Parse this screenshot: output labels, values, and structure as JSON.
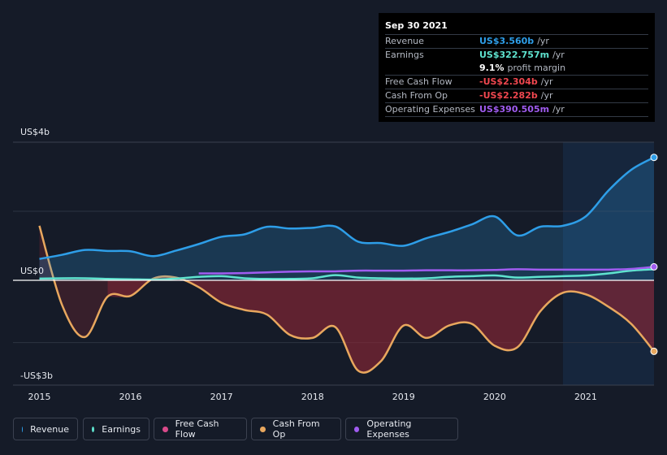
{
  "tooltip": {
    "date": "Sep 30 2021",
    "rows": [
      {
        "label": "Revenue",
        "value": "US$3.560b",
        "unit": "/yr",
        "color": "#2e9ee8"
      },
      {
        "label": "Earnings",
        "value": "US$322.757m",
        "unit": "/yr",
        "color": "#5fe3cf"
      },
      {
        "label": "",
        "value": "9.1%",
        "unit": "profit margin",
        "color": "#ffffff"
      },
      {
        "label": "Free Cash Flow",
        "value": "-US$2.304b",
        "unit": "/yr",
        "color": "#f0474f"
      },
      {
        "label": "Cash From Op",
        "value": "-US$2.282b",
        "unit": "/yr",
        "color": "#f0474f"
      },
      {
        "label": "Operating Expenses",
        "value": "US$390.505m",
        "unit": "/yr",
        "color": "#a05cf0"
      }
    ]
  },
  "legend": [
    {
      "label": "Revenue",
      "color": "#2e9ee8"
    },
    {
      "label": "Earnings",
      "color": "#5fe3cf"
    },
    {
      "label": "Free Cash Flow",
      "color": "#d94a8a"
    },
    {
      "label": "Cash From Op",
      "color": "#e8a75e"
    },
    {
      "label": "Operating Expenses",
      "color": "#a05cf0"
    }
  ],
  "chart_data": {
    "type": "line",
    "y_tick_labels": [
      "US$4b",
      "US$0",
      "-US$3b"
    ],
    "ylim": [
      -3,
      4
    ],
    "x_tick_labels": [
      "2015",
      "2016",
      "2017",
      "2018",
      "2019",
      "2020",
      "2021"
    ],
    "xlim": [
      2014.71,
      2021.75
    ],
    "highlight_start": 2020.75,
    "series": [
      {
        "name": "Revenue",
        "color": "#2e9ee8",
        "fill": true,
        "x": [
          2015.0,
          2015.25,
          2015.5,
          2015.75,
          2016.0,
          2016.25,
          2016.5,
          2016.75,
          2017.0,
          2017.25,
          2017.5,
          2017.75,
          2018.0,
          2018.25,
          2018.5,
          2018.75,
          2019.0,
          2019.25,
          2019.5,
          2019.75,
          2020.0,
          2020.25,
          2020.5,
          2020.75,
          2021.0,
          2021.25,
          2021.5,
          2021.75
        ],
        "y": [
          0.62,
          0.74,
          0.88,
          0.85,
          0.84,
          0.7,
          0.86,
          1.05,
          1.26,
          1.33,
          1.55,
          1.5,
          1.52,
          1.56,
          1.12,
          1.08,
          1.0,
          1.22,
          1.4,
          1.62,
          1.85,
          1.3,
          1.55,
          1.58,
          1.85,
          2.6,
          3.2,
          3.56
        ]
      },
      {
        "name": "Earnings",
        "color": "#5fe3cf",
        "fill": false,
        "x": [
          2015.0,
          2015.25,
          2015.5,
          2015.75,
          2016.0,
          2016.25,
          2016.5,
          2016.75,
          2017.0,
          2017.25,
          2017.5,
          2017.75,
          2018.0,
          2018.25,
          2018.5,
          2018.75,
          2019.0,
          2019.25,
          2019.5,
          2019.75,
          2020.0,
          2020.25,
          2020.5,
          2020.75,
          2021.0,
          2021.25,
          2021.5,
          2021.75
        ],
        "y": [
          0.05,
          0.06,
          0.06,
          0.04,
          0.03,
          0.02,
          0.05,
          0.1,
          0.12,
          0.06,
          0.04,
          0.04,
          0.06,
          0.15,
          0.08,
          0.06,
          0.05,
          0.06,
          0.1,
          0.12,
          0.14,
          0.08,
          0.1,
          0.12,
          0.14,
          0.2,
          0.28,
          0.32
        ]
      },
      {
        "name": "Operating Expenses",
        "color": "#a05cf0",
        "fill": false,
        "x": [
          2016.75,
          2017.0,
          2017.25,
          2017.5,
          2017.75,
          2018.0,
          2018.25,
          2018.5,
          2018.75,
          2019.0,
          2019.25,
          2019.5,
          2019.75,
          2020.0,
          2020.25,
          2020.5,
          2020.75,
          2021.0,
          2021.25,
          2021.5,
          2021.75
        ],
        "y": [
          0.2,
          0.2,
          0.21,
          0.23,
          0.25,
          0.26,
          0.26,
          0.28,
          0.28,
          0.28,
          0.29,
          0.29,
          0.29,
          0.3,
          0.32,
          0.31,
          0.31,
          0.31,
          0.31,
          0.33,
          0.39
        ]
      },
      {
        "name": "Free Cash Flow",
        "color": "#d94a8a",
        "fill": true,
        "line": false,
        "x": [
          2015.75,
          2016.0,
          2016.25,
          2016.5,
          2016.75,
          2017.0,
          2017.25,
          2017.5,
          2017.75,
          2018.0,
          2018.25,
          2018.5,
          2018.75,
          2019.0,
          2019.25,
          2019.5,
          2019.75,
          2020.0,
          2020.25,
          2020.5,
          2020.75,
          2021.0,
          2021.25,
          2021.5,
          2021.75
        ],
        "y": [
          -0.52,
          -0.5,
          0.05,
          0.08,
          -0.22,
          -0.72,
          -0.95,
          -1.1,
          -1.75,
          -1.85,
          -1.5,
          -2.9,
          -2.6,
          -1.45,
          -1.85,
          -1.45,
          -1.4,
          -2.1,
          -2.15,
          -1.0,
          -0.4,
          -0.45,
          -0.85,
          -1.4,
          -2.3
        ]
      },
      {
        "name": "Cash From Op",
        "color": "#e8a75e",
        "fill": true,
        "x": [
          2015.0,
          2015.25,
          2015.5,
          2015.75,
          2016.0,
          2016.25,
          2016.5,
          2016.75,
          2017.0,
          2017.25,
          2017.5,
          2017.75,
          2018.0,
          2018.25,
          2018.5,
          2018.75,
          2019.0,
          2019.25,
          2019.5,
          2019.75,
          2020.0,
          2020.25,
          2020.5,
          2020.75,
          2021.0,
          2021.25,
          2021.5,
          2021.75
        ],
        "y": [
          1.58,
          -0.8,
          -1.82,
          -0.52,
          -0.5,
          0.05,
          0.08,
          -0.22,
          -0.72,
          -0.95,
          -1.1,
          -1.75,
          -1.85,
          -1.5,
          -2.9,
          -2.6,
          -1.45,
          -1.85,
          -1.45,
          -1.4,
          -2.1,
          -2.15,
          -1.0,
          -0.4,
          -0.45,
          -0.85,
          -1.4,
          -2.28
        ]
      }
    ]
  }
}
